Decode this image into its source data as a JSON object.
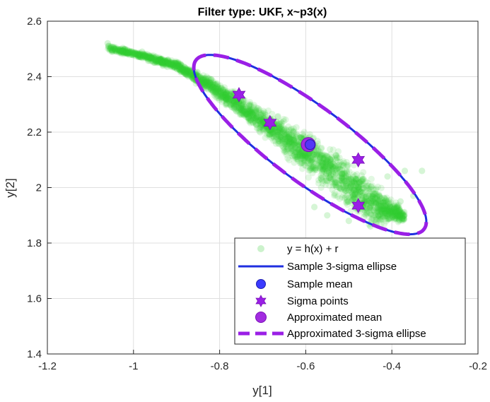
{
  "colors": {
    "background": "#ffffff",
    "grid": "#dfdfdf",
    "axis": "#262626",
    "samples": "#33cc33",
    "sample_ellipse": "#1f2fe0",
    "sample_mean": "#3a3aff",
    "sigma_points": "#9a1fe6",
    "approx_mean": "#a22ce0",
    "approx_ellipse": "#9a1fe6"
  },
  "chart_data": {
    "type": "scatter",
    "title": "Filter type: UKF, x~p3(x)",
    "xlabel": "y[1]",
    "ylabel": "y[2]",
    "xlim": [
      -1.2,
      -0.2
    ],
    "ylim": [
      1.4,
      2.6
    ],
    "x_ticks": [
      -1.2,
      -1,
      -0.8,
      -0.6,
      -0.4,
      -0.2
    ],
    "x_tick_labels": [
      "-1.2",
      "-1",
      "-0.8",
      "-0.6",
      "-0.4",
      "-0.2"
    ],
    "y_ticks": [
      1.4,
      1.6,
      1.8,
      2.0,
      2.2,
      2.4,
      2.6
    ],
    "y_tick_labels": [
      "1.4",
      "1.6",
      "1.8",
      "2",
      "2.2",
      "2.4",
      "2.6"
    ],
    "grid": true,
    "legend_position": "bottom-right",
    "legend": [
      {
        "label": "y = h(x) + r",
        "marker": "samples"
      },
      {
        "label": "Sample 3-sigma ellipse",
        "marker": "solid-line"
      },
      {
        "label": "Sample mean",
        "marker": "circle"
      },
      {
        "label": "Sigma points",
        "marker": "hexagram"
      },
      {
        "label": "Approximated mean",
        "marker": "circle-large"
      },
      {
        "label": "Approximated 3-sigma ellipse",
        "marker": "dashed-line"
      }
    ],
    "samples_band": {
      "upper": [
        [
          -1.06,
          2.52
        ],
        [
          -0.98,
          2.49
        ],
        [
          -0.9,
          2.46
        ],
        [
          -0.82,
          2.4
        ],
        [
          -0.75,
          2.34
        ],
        [
          -0.68,
          2.28
        ],
        [
          -0.6,
          2.22
        ],
        [
          -0.52,
          2.15
        ],
        [
          -0.46,
          2.07
        ],
        [
          -0.41,
          1.99
        ],
        [
          -0.37,
          1.92
        ]
      ],
      "lower": [
        [
          -1.06,
          2.49
        ],
        [
          -0.98,
          2.46
        ],
        [
          -0.9,
          2.42
        ],
        [
          -0.82,
          2.33
        ],
        [
          -0.75,
          2.24
        ],
        [
          -0.68,
          2.15
        ],
        [
          -0.62,
          2.06
        ],
        [
          -0.56,
          1.98
        ],
        [
          -0.5,
          1.9
        ],
        [
          -0.44,
          1.84
        ],
        [
          -0.37,
          1.87
        ]
      ]
    },
    "scattered_outliers": [
      [
        -1.06,
        2.52
      ],
      [
        -1.05,
        2.49
      ],
      [
        -1.02,
        2.5
      ],
      [
        -0.98,
        2.49
      ],
      [
        -1.04,
        2.5
      ],
      [
        -0.37,
        2.06
      ],
      [
        -0.33,
        2.06
      ],
      [
        -0.35,
        1.97
      ],
      [
        -0.41,
        2.04
      ],
      [
        -0.38,
        1.95
      ],
      [
        -0.5,
        1.88
      ],
      [
        -0.55,
        1.9
      ],
      [
        -0.58,
        1.93
      ],
      [
        -0.45,
        1.86
      ]
    ],
    "ellipse": {
      "center": [
        -0.59,
        2.155
      ],
      "sigma_x": 0.09,
      "sigma_y": 0.1078,
      "rho": -0.8586,
      "n_sigma": 3
    },
    "sample_mean": [
      -0.59,
      2.155
    ],
    "approximated_mean": [
      -0.594,
      2.155
    ],
    "sigma_points": [
      [
        -0.755,
        2.335
      ],
      [
        -0.683,
        2.234
      ],
      [
        -0.478,
        2.1
      ],
      [
        -0.478,
        1.935
      ]
    ]
  }
}
